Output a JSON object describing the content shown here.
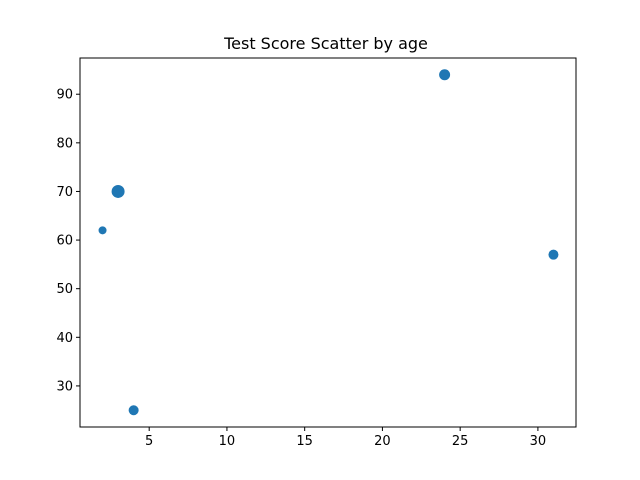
{
  "chart_data": {
    "type": "scatter",
    "title": "Test Score Scatter by age",
    "xlabel": "",
    "ylabel": "",
    "xlim": [
      0.55,
      32.45
    ],
    "ylim": [
      21.55,
      97.45
    ],
    "xticks": [
      5,
      10,
      15,
      20,
      25,
      30
    ],
    "yticks": [
      30,
      40,
      50,
      60,
      70,
      80,
      90
    ],
    "grid": false,
    "color": "#1f77b4",
    "series": [
      {
        "points": [
          {
            "x": 2,
            "y": 62,
            "size": "small"
          },
          {
            "x": 3,
            "y": 70,
            "size": "large"
          },
          {
            "x": 4,
            "y": 25,
            "size": "medium"
          },
          {
            "x": 24,
            "y": 94,
            "size": "medium-large"
          },
          {
            "x": 31,
            "y": 57,
            "size": "medium"
          }
        ]
      }
    ]
  }
}
